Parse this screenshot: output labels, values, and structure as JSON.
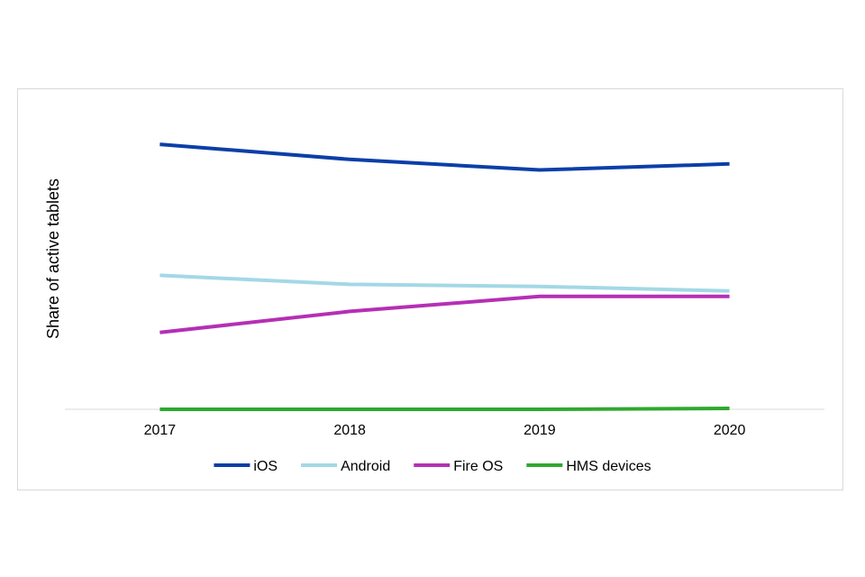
{
  "chart_data": {
    "type": "line",
    "title": "",
    "xlabel": "",
    "ylabel": "Share of active tablets",
    "categories": [
      "2017",
      "2018",
      "2019",
      "2020"
    ],
    "ylim": [
      0,
      100
    ],
    "grid": false,
    "legend_position": "bottom",
    "series": [
      {
        "name": "iOS",
        "color": "#0b3fa8",
        "values": [
          88,
          83,
          79.5,
          81.5
        ]
      },
      {
        "name": "Android",
        "color": "#a3d8e6",
        "values": [
          44.5,
          41.5,
          40.8,
          39.3
        ]
      },
      {
        "name": "Fire OS",
        "color": "#b52fb5",
        "values": [
          25.5,
          32.5,
          37.5,
          37.5
        ]
      },
      {
        "name": "HMS devices",
        "color": "#2fa82f",
        "values": [
          0,
          0,
          0,
          0.3
        ]
      }
    ]
  }
}
